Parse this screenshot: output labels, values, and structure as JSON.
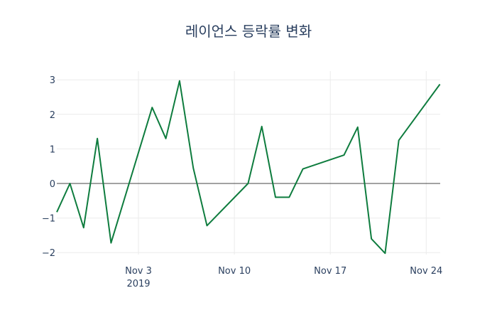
{
  "chart_data": {
    "type": "line",
    "title": "레이언스 등락률 변화",
    "xlabel": "",
    "ylabel": "",
    "x": [
      "2019-10-28",
      "2019-10-29",
      "2019-10-30",
      "2019-10-31",
      "2019-11-01",
      "2019-11-04",
      "2019-11-05",
      "2019-11-06",
      "2019-11-07",
      "2019-11-08",
      "2019-11-11",
      "2019-11-12",
      "2019-11-13",
      "2019-11-14",
      "2019-11-15",
      "2019-11-18",
      "2019-11-19",
      "2019-11-20",
      "2019-11-21",
      "2019-11-22",
      "2019-11-25"
    ],
    "series": [
      {
        "name": "등락률",
        "color": "#0e7c3e",
        "values": [
          -0.83,
          0.0,
          -1.28,
          1.3,
          -1.72,
          2.2,
          1.3,
          2.97,
          0.45,
          -1.22,
          0.0,
          1.65,
          -0.4,
          -0.4,
          0.42,
          0.82,
          1.63,
          -1.6,
          -2.02,
          1.25,
          2.87
        ]
      }
    ],
    "ylim": [
      -2.2,
      3.25
    ],
    "y_ticks": [
      3,
      2,
      1,
      0,
      -1,
      -2
    ],
    "y_tick_labels": [
      "3",
      "2",
      "1",
      "0",
      "−1",
      "−2"
    ],
    "x_ticks": [
      "2019-11-03",
      "2019-11-10",
      "2019-11-17",
      "2019-11-24"
    ],
    "x_tick_labels": [
      "Nov 3",
      "Nov 10",
      "Nov 17",
      "Nov 24"
    ],
    "x_tick_sublabel": "2019",
    "grid": true,
    "zero_line": true
  }
}
